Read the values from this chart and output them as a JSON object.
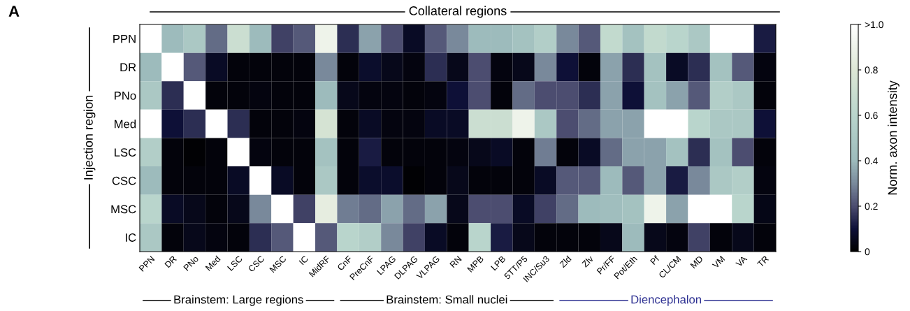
{
  "chart_data": {
    "type": "heatmap",
    "xlabel": "Collateral regions",
    "ylabel": "Injection region",
    "clabel": "Norm. axon intensity",
    "categories": [
      "PPN",
      "DR",
      "PNo",
      "Med",
      "LSC",
      "CSC",
      "MSC",
      "IC",
      "MidRF",
      "CnF",
      "PreCnF",
      "LPAG",
      "DLPAG",
      "VLPAG",
      "RN",
      "MPB",
      "LPB",
      "5TT/P5",
      "INC/Su3",
      "Zld",
      "Zlv",
      "Pr/FF",
      "Pot/Eth",
      "Pf",
      "CL/CM",
      "MD",
      "VM",
      "VA",
      "TR"
    ],
    "y_categories": [
      "PPN",
      "DR",
      "PNo",
      "Med",
      "LSC",
      "CSC",
      "MSC",
      "IC"
    ],
    "cells": [
      [
        1.0,
        0.4,
        0.5,
        0.25,
        0.7,
        0.4,
        0.18,
        0.22,
        0.9,
        0.15,
        0.35,
        0.2,
        0.07,
        0.22,
        0.3,
        0.4,
        0.4,
        0.45,
        0.55,
        0.3,
        0.22,
        0.65,
        0.45,
        0.65,
        0.6,
        0.5,
        1.0,
        1.0,
        0.12
      ],
      [
        0.4,
        1.0,
        0.22,
        0.07,
        0.02,
        0.02,
        0.02,
        0.02,
        0.3,
        0.02,
        0.08,
        0.05,
        0.03,
        0.15,
        0.05,
        0.2,
        0.03,
        0.05,
        0.3,
        0.1,
        0.02,
        0.35,
        0.15,
        0.45,
        0.07,
        0.15,
        0.45,
        0.22,
        0.03
      ],
      [
        0.5,
        0.15,
        1.0,
        0.02,
        0.02,
        0.03,
        0.02,
        0.02,
        0.4,
        0.05,
        0.03,
        0.03,
        0.02,
        0.03,
        0.1,
        0.2,
        0.02,
        0.25,
        0.2,
        0.2,
        0.15,
        0.35,
        0.1,
        0.45,
        0.35,
        0.22,
        0.55,
        0.5,
        0.02
      ],
      [
        1.0,
        0.1,
        0.15,
        1.0,
        0.15,
        0.02,
        0.02,
        0.03,
        0.75,
        0.02,
        0.07,
        0.03,
        0.03,
        0.07,
        0.07,
        0.7,
        0.7,
        0.9,
        0.5,
        0.2,
        0.25,
        0.35,
        0.35,
        1.0,
        1.0,
        0.6,
        0.5,
        0.5,
        0.1
      ],
      [
        0.55,
        0.02,
        0.01,
        0.02,
        1.0,
        0.03,
        0.02,
        0.02,
        0.45,
        0.02,
        0.12,
        0.02,
        0.02,
        0.02,
        0.03,
        0.05,
        0.07,
        0.02,
        0.28,
        0.02,
        0.07,
        0.25,
        0.35,
        0.35,
        0.45,
        0.15,
        0.45,
        0.2,
        0.02
      ],
      [
        0.4,
        0.02,
        0.02,
        0.02,
        0.07,
        1.0,
        0.07,
        0.02,
        0.5,
        0.02,
        0.08,
        0.08,
        0.01,
        0.02,
        0.05,
        0.02,
        0.02,
        0.02,
        0.07,
        0.22,
        0.22,
        0.4,
        0.22,
        0.35,
        0.12,
        0.3,
        0.5,
        0.55,
        0.03
      ],
      [
        0.6,
        0.07,
        0.05,
        0.02,
        0.05,
        0.3,
        1.0,
        0.18,
        0.85,
        0.28,
        0.25,
        0.35,
        0.25,
        0.35,
        0.05,
        0.2,
        0.2,
        0.07,
        0.18,
        0.25,
        0.4,
        0.42,
        0.45,
        0.9,
        0.35,
        1.0,
        1.0,
        0.6,
        0.04
      ],
      [
        0.5,
        0.02,
        0.05,
        0.03,
        0.02,
        0.15,
        0.22,
        1.0,
        0.22,
        0.6,
        0.55,
        0.3,
        0.18,
        0.07,
        0.02,
        0.6,
        0.12,
        0.05,
        0.02,
        0.02,
        0.02,
        0.05,
        0.4,
        0.05,
        0.03,
        0.18,
        0.02,
        0.05,
        0.02
      ]
    ],
    "clim": [
      0,
      1.0
    ],
    "cticks": [
      0,
      0.2,
      0.4,
      0.6,
      0.8,
      {
        "value": 1.0,
        "label": ">1.0"
      }
    ],
    "annotations": [
      "A",
      "Brainstem: Large regions",
      "Brainstem: Small nuclei",
      "Diencephalon"
    ]
  }
}
